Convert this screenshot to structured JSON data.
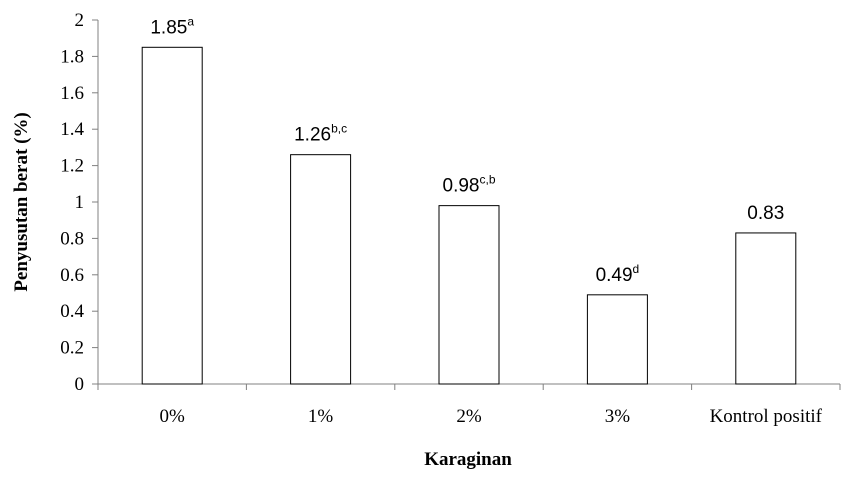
{
  "chart_data": {
    "type": "bar",
    "categories": [
      "0%",
      "1%",
      "2%",
      "3%",
      "Kontrol positif"
    ],
    "values": [
      1.85,
      1.26,
      0.98,
      0.49,
      0.83
    ],
    "data_labels": [
      {
        "value": "1.85",
        "superscript": "a"
      },
      {
        "value": "1.26",
        "superscript": "b,c"
      },
      {
        "value": "0.98",
        "superscript": "c,b"
      },
      {
        "value": "0.49",
        "superscript": "d"
      },
      {
        "value": "0.83",
        "superscript": ""
      }
    ],
    "yticks": [
      "0",
      "0.2",
      "0.4",
      "0.6",
      "0.8",
      "1",
      "1.2",
      "1.4",
      "1.6",
      "1.8",
      "2"
    ],
    "ylim": [
      0,
      2
    ],
    "xlabel": "Karaginan",
    "ylabel": "Penyusutan berat (%)",
    "grid": false,
    "legend": "none",
    "bar_fill": "#ffffff",
    "bar_stroke": "#000000",
    "axis_color": "#808080"
  }
}
